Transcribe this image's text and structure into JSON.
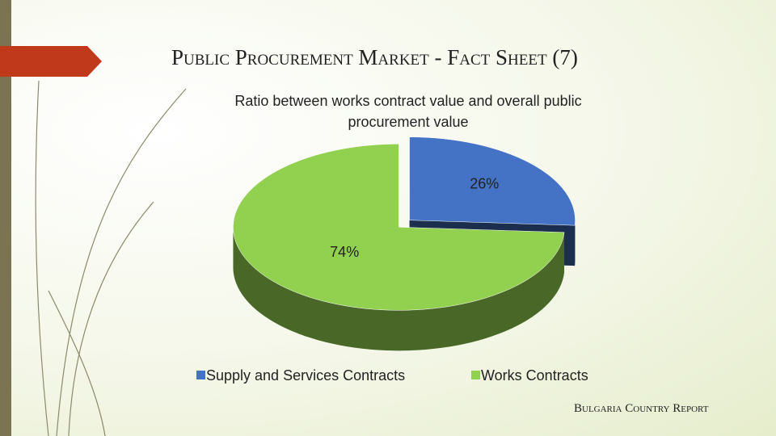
{
  "slide": {
    "title": "Public Procurement Market - Fact Sheet (7)",
    "footer": "Bulgaria Country Report"
  },
  "chart_data": {
    "type": "pie",
    "title": "Ratio between works contract value and overall public procurement value",
    "categories": [
      "Supply and Services Contracts",
      "Works Contracts"
    ],
    "values": [
      26,
      74
    ],
    "value_labels": [
      "26%",
      "74%"
    ],
    "colors": [
      "#4472c4",
      "#92d050"
    ],
    "legend": "bottom"
  }
}
